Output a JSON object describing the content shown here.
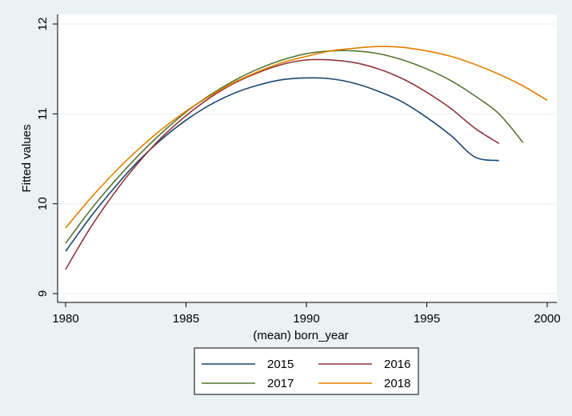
{
  "chart_data": {
    "type": "line",
    "xlabel": "(mean) born_year",
    "ylabel": "Fitted values",
    "xlim": [
      1980,
      2000
    ],
    "ylim": [
      9,
      12
    ],
    "xticks": [
      1980,
      1985,
      1990,
      1995,
      2000
    ],
    "yticks": [
      9,
      10,
      11,
      12
    ],
    "grid": "horizontal",
    "legend_position": "bottom",
    "series": [
      {
        "name": "2015",
        "color": "#1a476f",
        "x": [
          1980,
          1981,
          1982,
          1983,
          1984,
          1985,
          1986,
          1987,
          1988,
          1989,
          1990,
          1991,
          1992,
          1993,
          1994,
          1995,
          1996,
          1997,
          1998
        ],
        "y": [
          9.47,
          9.84,
          10.17,
          10.47,
          10.72,
          10.93,
          11.1,
          11.23,
          11.32,
          11.38,
          11.4,
          11.39,
          11.34,
          11.25,
          11.13,
          10.96,
          10.76,
          10.52,
          10.48
        ]
      },
      {
        "name": "2016",
        "color": "#90353b",
        "x": [
          1980,
          1981,
          1982,
          1983,
          1984,
          1985,
          1986,
          1987,
          1988,
          1989,
          1990,
          1991,
          1992,
          1993,
          1994,
          1995,
          1996,
          1997,
          1998
        ],
        "y": [
          9.27,
          9.72,
          10.11,
          10.45,
          10.74,
          10.98,
          11.18,
          11.34,
          11.46,
          11.55,
          11.6,
          11.6,
          11.57,
          11.5,
          11.39,
          11.24,
          11.06,
          10.84,
          10.67
        ]
      },
      {
        "name": "2017",
        "color": "#55752f",
        "x": [
          1980,
          1981,
          1982,
          1983,
          1984,
          1985,
          1986,
          1987,
          1988,
          1989,
          1990,
          1991,
          1992,
          1993,
          1994,
          1995,
          1996,
          1997,
          1998,
          1999
        ],
        "y": [
          9.56,
          9.92,
          10.24,
          10.53,
          10.79,
          11.02,
          11.21,
          11.37,
          11.5,
          11.6,
          11.67,
          11.7,
          11.7,
          11.67,
          11.6,
          11.5,
          11.37,
          11.2,
          11.0,
          10.68
        ]
      },
      {
        "name": "2018",
        "color": "#e37e00",
        "x": [
          1980,
          1981,
          1982,
          1983,
          1984,
          1985,
          1986,
          1987,
          1988,
          1989,
          1990,
          1991,
          1992,
          1993,
          1994,
          1995,
          1996,
          1997,
          1998,
          1999,
          2000
        ],
        "y": [
          9.73,
          10.05,
          10.34,
          10.6,
          10.83,
          11.03,
          11.2,
          11.35,
          11.47,
          11.57,
          11.64,
          11.7,
          11.73,
          11.75,
          11.74,
          11.7,
          11.64,
          11.55,
          11.44,
          11.31,
          11.15
        ]
      }
    ]
  }
}
